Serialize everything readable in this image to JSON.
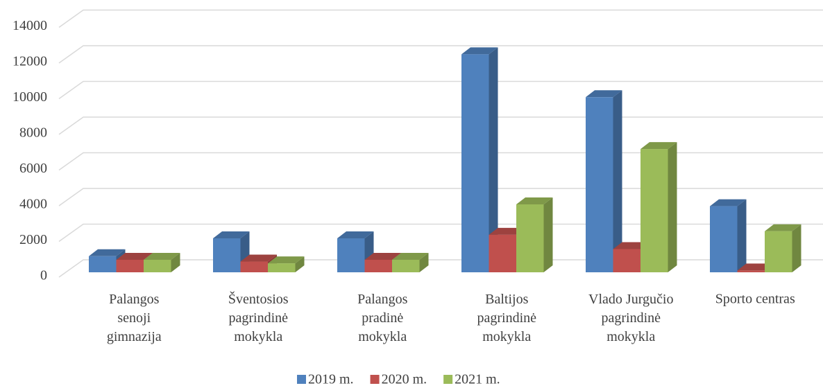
{
  "chart_data": {
    "type": "bar3d",
    "categories": [
      "Palangos\nsenoji\ngimnazija",
      "Šventosios\npagrindinė\nmokykla",
      "Palangos\npradinė\nmokykla",
      "Baltijos\npagrindinė\nmokykla",
      "Vlado Jurgučio\npagrindinė\nmokykla",
      "Sporto centras"
    ],
    "series": [
      {
        "name": "2019 m.",
        "color": "#4f81bd",
        "values": [
          900,
          1900,
          1900,
          12200,
          9800,
          3700
        ]
      },
      {
        "name": "2020 m.",
        "color": "#c0504d",
        "values": [
          700,
          600,
          700,
          2100,
          1300,
          100
        ]
      },
      {
        "name": "2021 m.",
        "color": "#9bbb59",
        "values": [
          700,
          500,
          700,
          3800,
          6900,
          2300
        ]
      }
    ],
    "ylim": [
      0,
      14000
    ],
    "yticks": [
      0,
      2000,
      4000,
      6000,
      8000,
      10000,
      12000,
      14000
    ],
    "grid": true,
    "legend": "bottom"
  }
}
